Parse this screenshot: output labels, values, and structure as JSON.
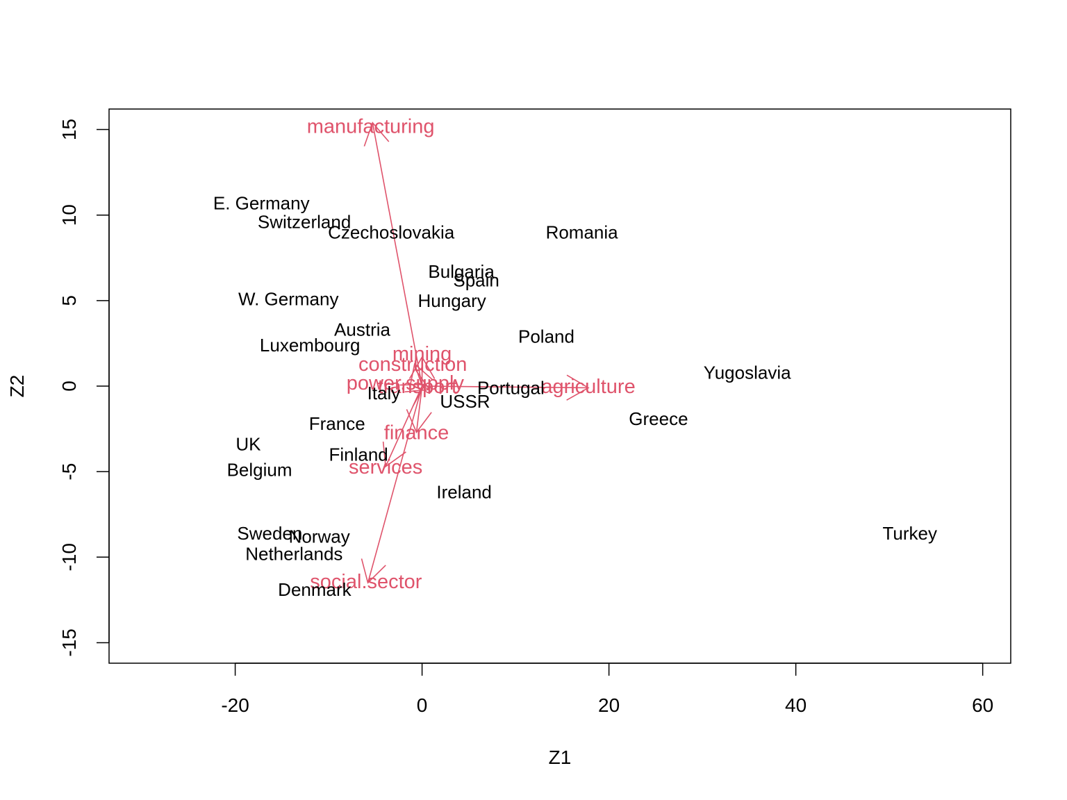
{
  "chart_data": {
    "type": "scatter",
    "subtype": "biplot",
    "title": "",
    "xlabel": "Z1",
    "ylabel": "Z2",
    "xlim": [
      -33.5,
      63
    ],
    "ylim": [
      -16.2,
      16.2
    ],
    "xticks": [
      -20,
      0,
      20,
      40,
      60
    ],
    "yticks": [
      -15,
      -10,
      -5,
      0,
      5,
      10,
      15
    ],
    "grid": false,
    "legend": "none",
    "colors": {
      "observations": "#000000",
      "variables": "#DF536B",
      "axes": "#000000"
    },
    "points": [
      {
        "label": "E. Germany",
        "x": -17.2,
        "y": 10.7
      },
      {
        "label": "Switzerland",
        "x": -12.6,
        "y": 9.6
      },
      {
        "label": "Czechoslovakia",
        "x": -3.3,
        "y": 9.0
      },
      {
        "label": "Romania",
        "x": 17.1,
        "y": 9.0
      },
      {
        "label": "Bulgaria",
        "x": 4.2,
        "y": 6.7
      },
      {
        "label": "Spain",
        "x": 5.8,
        "y": 6.2
      },
      {
        "label": "W. Germany",
        "x": -14.3,
        "y": 5.1
      },
      {
        "label": "Hungary",
        "x": 3.2,
        "y": 5.0
      },
      {
        "label": "Austria",
        "x": -6.4,
        "y": 3.3
      },
      {
        "label": "Poland",
        "x": 13.3,
        "y": 2.9
      },
      {
        "label": "Luxembourg",
        "x": -12.0,
        "y": 2.4
      },
      {
        "label": "Yugoslavia",
        "x": 34.8,
        "y": 0.8
      },
      {
        "label": "Portugal",
        "x": 9.5,
        "y": -0.1
      },
      {
        "label": "Italy",
        "x": -4.1,
        "y": -0.4
      },
      {
        "label": "USSR",
        "x": 4.6,
        "y": -0.9
      },
      {
        "label": "Greece",
        "x": 25.3,
        "y": -1.9
      },
      {
        "label": "France",
        "x": -9.1,
        "y": -2.2
      },
      {
        "label": "UK",
        "x": -18.6,
        "y": -3.4
      },
      {
        "label": "Finland",
        "x": -6.8,
        "y": -4.0
      },
      {
        "label": "Belgium",
        "x": -17.4,
        "y": -4.9
      },
      {
        "label": "Ireland",
        "x": 4.5,
        "y": -6.2
      },
      {
        "label": "Turkey",
        "x": 52.2,
        "y": -8.6
      },
      {
        "label": "Sweden",
        "x": -16.3,
        "y": -8.6
      },
      {
        "label": "Norway",
        "x": -11.0,
        "y": -8.8
      },
      {
        "label": "Netherlands",
        "x": -13.7,
        "y": -9.8
      },
      {
        "label": "Denmark",
        "x": -11.5,
        "y": -11.9
      }
    ],
    "loadings": [
      {
        "label": "manufacturing",
        "x": -5.3,
        "y": 15.4,
        "label_x": -5.5,
        "label_y": 15.2
      },
      {
        "label": "mining",
        "x": 0.0,
        "y": 1.7,
        "label_x": 0.0,
        "label_y": 1.9
      },
      {
        "label": "construction",
        "x": -0.8,
        "y": 1.3,
        "label_x": -1.0,
        "label_y": 1.3
      },
      {
        "label": "power.supply",
        "x": 0.3,
        "y": 0.1,
        "label_x": -1.8,
        "label_y": 0.2
      },
      {
        "label": "transport",
        "x": 0.8,
        "y": -0.2,
        "label_x": -0.5,
        "label_y": 0.0
      },
      {
        "label": "agriculture",
        "x": 17.8,
        "y": -0.1,
        "label_x": 17.8,
        "label_y": 0.0
      },
      {
        "label": "finance",
        "x": -0.6,
        "y": -2.7,
        "label_x": -0.6,
        "label_y": -2.7
      },
      {
        "label": "services",
        "x": -3.9,
        "y": -4.7,
        "label_x": -3.9,
        "label_y": -4.7
      },
      {
        "label": "social.sector",
        "x": -5.8,
        "y": -11.5,
        "label_x": -6.0,
        "label_y": -11.4
      }
    ]
  }
}
